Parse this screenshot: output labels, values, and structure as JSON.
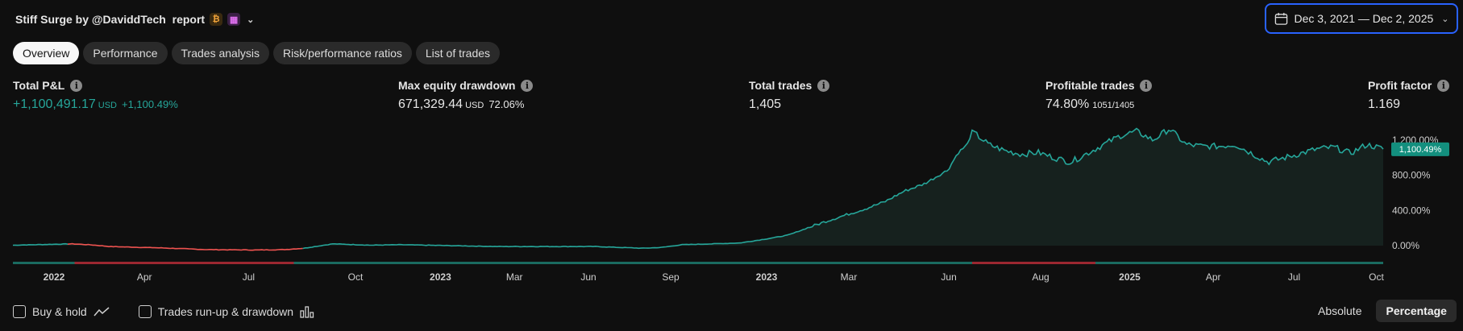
{
  "header": {
    "title": "Stiff Surge by @DaviddTech  report",
    "badge_orange": "₿",
    "badge_purple": "▦",
    "chevron_icon": "chevron-down-icon",
    "date_range": "Dec 3, 2021 — Dec 2, 2025"
  },
  "tabs": [
    {
      "label": "Overview",
      "active": true
    },
    {
      "label": "Performance"
    },
    {
      "label": "Trades analysis"
    },
    {
      "label": "Risk/performance ratios"
    },
    {
      "label": "List of trades"
    }
  ],
  "metrics": {
    "total_pnl": {
      "label": "Total P&L",
      "value": "+1,100,491.17",
      "unit": "USD",
      "pct": "+1,100.49%"
    },
    "max_dd": {
      "label": "Max equity drawdown",
      "value": "671,329.44",
      "unit": "USD",
      "pct": "72.06%"
    },
    "total_trades": {
      "label": "Total trades",
      "value": "1,405"
    },
    "profitable": {
      "label": "Profitable trades",
      "value": "74.80%",
      "frac": "1051/1405"
    },
    "profit_factor": {
      "label": "Profit factor",
      "value": "1.169"
    }
  },
  "colors": {
    "positive": "#26a69a",
    "negative": "#ef5350",
    "accent": "#2962ff"
  },
  "chart_data": {
    "type": "area",
    "y_unit": "%",
    "ylim": [
      -100,
      1400
    ],
    "y_ticks": [
      "0.00%",
      "400.00%",
      "800.00%",
      "1,200.00%"
    ],
    "y_tick_values": [
      0,
      400,
      800,
      1200
    ],
    "current_label": "1,100.49%",
    "x_tick_labels": [
      {
        "label": "2022",
        "bold": true,
        "t": 0.03
      },
      {
        "label": "Apr",
        "t": 0.096
      },
      {
        "label": "Jul",
        "t": 0.172
      },
      {
        "label": "Oct",
        "t": 0.25
      },
      {
        "label": "2023",
        "bold": true,
        "t": 0.312
      },
      {
        "label": "Mar",
        "t": 0.366
      },
      {
        "label": "Jun",
        "t": 0.42
      },
      {
        "label": "Sep",
        "t": 0.48
      },
      {
        "label": "2023",
        "bold": true,
        "t": 0.55
      },
      {
        "label": "Mar",
        "t": 0.61
      },
      {
        "label": "Jun",
        "t": 0.683
      },
      {
        "label": "Aug",
        "t": 0.75
      },
      {
        "label": "2025",
        "bold": true,
        "t": 0.815
      },
      {
        "label": "Apr",
        "t": 0.876
      },
      {
        "label": "Jul",
        "t": 0.935
      },
      {
        "label": "Oct",
        "t": 0.995
      }
    ],
    "equity": [
      [
        0.0,
        5
      ],
      [
        0.04,
        15
      ],
      [
        0.06,
        20
      ],
      [
        0.08,
        10
      ],
      [
        0.1,
        -10
      ],
      [
        0.15,
        -25
      ],
      [
        0.2,
        -45
      ],
      [
        0.25,
        -50
      ],
      [
        0.28,
        -45
      ],
      [
        0.3,
        -30
      ],
      [
        0.33,
        20
      ],
      [
        0.37,
        5
      ],
      [
        0.4,
        10
      ],
      [
        0.45,
        0
      ],
      [
        0.5,
        -10
      ],
      [
        0.55,
        -10
      ],
      [
        0.6,
        -10
      ],
      [
        0.65,
        -30
      ],
      [
        0.67,
        -20
      ],
      [
        0.69,
        10
      ],
      [
        0.72,
        20
      ],
      [
        0.75,
        30
      ],
      [
        0.78,
        80
      ],
      [
        0.8,
        120
      ],
      [
        0.82,
        200
      ],
      [
        0.84,
        280
      ],
      [
        0.86,
        350
      ],
      [
        0.88,
        420
      ],
      [
        0.9,
        500
      ],
      [
        0.92,
        620
      ],
      [
        0.94,
        700
      ],
      [
        0.965,
        860
      ],
      [
        0.975,
        1050
      ],
      [
        0.985,
        1150
      ],
      [
        0.99,
        1300
      ],
      [
        1.0,
        1050
      ]
    ],
    "equity_segments": [
      {
        "t0": 0.0,
        "t1": 0.055,
        "dd": false
      },
      {
        "t0": 0.055,
        "t1": 0.3,
        "dd": true
      },
      {
        "t0": 0.3,
        "t1": 1.0,
        "dd": false
      }
    ],
    "equity_tail": [
      [
        0.0,
        1300
      ],
      [
        0.02,
        1150
      ],
      [
        0.04,
        1080
      ],
      [
        0.06,
        1040
      ],
      [
        0.08,
        1060
      ],
      [
        0.1,
        1000
      ],
      [
        0.12,
        950
      ],
      [
        0.14,
        1050
      ],
      [
        0.16,
        1150
      ],
      [
        0.18,
        1250
      ],
      [
        0.2,
        1300
      ],
      [
        0.22,
        1200
      ],
      [
        0.24,
        1330
      ],
      [
        0.26,
        1150
      ],
      [
        0.28,
        1130
      ],
      [
        0.3,
        1130
      ],
      [
        0.32,
        1150
      ],
      [
        0.34,
        1050
      ],
      [
        0.36,
        950
      ],
      [
        0.38,
        1000
      ],
      [
        0.4,
        1050
      ],
      [
        0.42,
        1100
      ],
      [
        0.44,
        1120
      ],
      [
        0.46,
        1050
      ],
      [
        0.48,
        1150
      ],
      [
        0.5,
        1100
      ]
    ],
    "trade_bars": [
      {
        "t0": 0.0,
        "t1": 0.045,
        "dd": false
      },
      {
        "t0": 0.045,
        "t1": 0.205,
        "dd": true
      },
      {
        "t0": 0.205,
        "t1": 0.565,
        "dd": false
      },
      {
        "t0": 0.565,
        "t1": 0.6,
        "dd": false
      },
      {
        "t0": 0.6,
        "t1": 0.675,
        "dd": false
      },
      {
        "t0": 0.675,
        "t1": 0.7,
        "dd": false
      },
      {
        "t0": 0.7,
        "t1": 0.79,
        "dd": true
      },
      {
        "t0": 0.79,
        "t1": 1.0,
        "dd": false
      }
    ]
  },
  "footer": {
    "buy_hold": "Buy & hold",
    "runup": "Trades run-up & drawdown",
    "absolute": "Absolute",
    "percentage": "Percentage"
  }
}
